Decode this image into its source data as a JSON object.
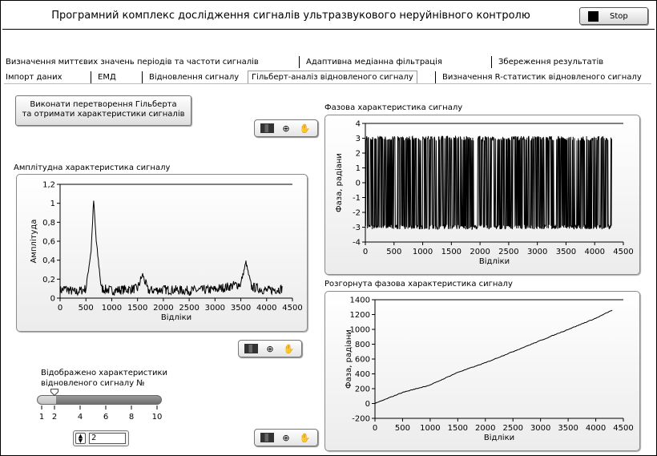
{
  "app": {
    "title": "Програмний комплекс дослідження сигналів ультразвукового неруйнівного контролю",
    "stop_label": "Stop"
  },
  "tabs": {
    "row1": [
      "Визначення миттєвих значень періодів та частоти сигналів",
      "Адаптивна медіанна фільтрація",
      "Збереження результатів"
    ],
    "row2": [
      "Імпорт даних",
      "ЕМД",
      "Відновлення сигналу",
      "Гільберт-аналіз відновленого сигналу",
      "Визначення R-статистик відновленого сигналу"
    ],
    "active_tab": "Гільберт-аналіз відновленого сигналу"
  },
  "controls": {
    "transform_button_line1": "Виконати перетворення Гільберта",
    "transform_button_line2": "та отримати характеристики сигналів",
    "slider_caption_line1": "Відображено характеристики",
    "slider_caption_line2": "відновленого сигналу №",
    "slider_value": 2,
    "slider_min": 1,
    "slider_max": 10,
    "slider_ticks": [
      "1",
      "2",
      "4",
      "6",
      "8",
      "10"
    ],
    "numeric_value": "2"
  },
  "palette_icons": [
    "grid-icon",
    "zoom-icon",
    "pan-hand-icon"
  ],
  "chart_data": [
    {
      "type": "line",
      "title": "Амплітудна характеристика сигналу",
      "xlabel": "Відліки",
      "ylabel": "Амплітуда",
      "xlim": [
        0,
        4500
      ],
      "ylim": [
        0,
        1.2
      ],
      "xticks": [
        "0",
        "500",
        "1000",
        "1500",
        "2000",
        "2500",
        "3000",
        "3500",
        "4000",
        "4500"
      ],
      "yticks": [
        "0",
        "0,2",
        "0,4",
        "0,6",
        "0,8",
        "1",
        "1,2"
      ],
      "series": [
        {
          "x": [
            0,
            100,
            300,
            500,
            600,
            650,
            700,
            800,
            1000,
            1500,
            1600,
            1700,
            2000,
            2500,
            3000,
            3500,
            3600,
            3700,
            4000,
            4300
          ],
          "y": [
            0.08,
            0.1,
            0.06,
            0.1,
            0.5,
            1.03,
            0.6,
            0.1,
            0.08,
            0.1,
            0.25,
            0.08,
            0.09,
            0.08,
            0.09,
            0.15,
            0.38,
            0.12,
            0.08,
            0.1
          ]
        }
      ]
    },
    {
      "type": "line",
      "title": "Фазова характеристика сигналу",
      "xlabel": "Відліки",
      "ylabel": "Фаза, радіани",
      "xlim": [
        0,
        4500
      ],
      "ylim": [
        -4,
        4
      ],
      "xticks": [
        "0",
        "500",
        "1000",
        "1500",
        "2000",
        "2500",
        "3000",
        "3500",
        "4000",
        "4500"
      ],
      "yticks": [
        "-4",
        "-3",
        "-2",
        "-1",
        "0",
        "1",
        "2",
        "3",
        "4"
      ],
      "series": [
        {
          "x": [
            0,
            4300
          ],
          "y_range": [
            -3.14,
            3.14
          ]
        }
      ]
    },
    {
      "type": "line",
      "title": "Розгорнута фазова характеристика сигналу",
      "xlabel": "Відліки",
      "ylabel": "Фаза, радіани",
      "xlim": [
        0,
        4500
      ],
      "ylim": [
        -200,
        1400
      ],
      "xticks": [
        "0",
        "500",
        "1000",
        "1500",
        "2000",
        "2500",
        "3000",
        "3500",
        "4000",
        "4500"
      ],
      "yticks": [
        "-200",
        "0",
        "200",
        "400",
        "600",
        "800",
        "1000",
        "1200",
        "1400"
      ],
      "series": [
        {
          "x": [
            0,
            500,
            1000,
            1500,
            2000,
            2500,
            3000,
            3500,
            4000,
            4300
          ],
          "y": [
            0,
            150,
            250,
            420,
            550,
            700,
            850,
            1000,
            1150,
            1260
          ]
        }
      ]
    }
  ]
}
